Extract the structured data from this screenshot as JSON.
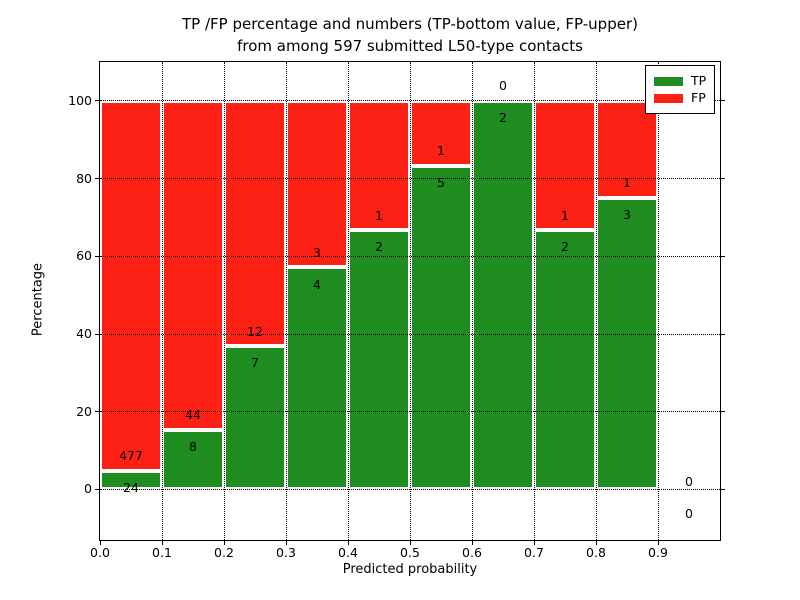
{
  "chart_data": {
    "type": "bar",
    "stacked": true,
    "title": "TP /FP percentage and numbers (TP-bottom value, FP-upper)\nfrom among 597 submitted L50-type contacts",
    "title_line1": "TP /FP percentage and numbers (TP-bottom value, FP-upper)",
    "title_line2": "from among 597 submitted L50-type contacts",
    "xlabel": "Predicted probability",
    "ylabel": "Percentage",
    "total_contacts": 597,
    "xlim": [
      0.0,
      1.0
    ],
    "ylim": [
      -13,
      110
    ],
    "grid": "dotted",
    "x_ticks": [
      0.0,
      0.1,
      0.2,
      0.3,
      0.4,
      0.5,
      0.6,
      0.7,
      0.8,
      0.9
    ],
    "x_tick_labels": [
      "0.0",
      "0.1",
      "0.2",
      "0.3",
      "0.4",
      "0.5",
      "0.6",
      "0.7",
      "0.8",
      "0.9"
    ],
    "y_ticks": [
      0,
      20,
      40,
      60,
      80,
      100
    ],
    "y_tick_labels": [
      "0",
      "20",
      "40",
      "60",
      "80",
      "100"
    ],
    "bins": [
      {
        "start": 0.0,
        "end": 0.1
      },
      {
        "start": 0.1,
        "end": 0.2
      },
      {
        "start": 0.2,
        "end": 0.3
      },
      {
        "start": 0.3,
        "end": 0.4
      },
      {
        "start": 0.4,
        "end": 0.5
      },
      {
        "start": 0.5,
        "end": 0.6
      },
      {
        "start": 0.6,
        "end": 0.7
      },
      {
        "start": 0.7,
        "end": 0.8
      },
      {
        "start": 0.8,
        "end": 0.9
      },
      {
        "start": 0.9,
        "end": 1.0
      }
    ],
    "series": [
      {
        "name": "TP",
        "color": "#1e8c1e",
        "values": [
          24,
          8,
          7,
          4,
          2,
          5,
          2,
          2,
          3,
          0
        ]
      },
      {
        "name": "FP",
        "color": "#fc2114",
        "values": [
          477,
          44,
          12,
          3,
          1,
          1,
          0,
          1,
          1,
          0
        ]
      }
    ],
    "tp_percent": [
      4.79,
      15.38,
      36.84,
      57.14,
      66.67,
      83.33,
      100.0,
      66.67,
      75.0,
      0
    ],
    "legend": {
      "position": "upper-right",
      "entries": [
        {
          "label": "TP",
          "color": "#1e8c1e"
        },
        {
          "label": "FP",
          "color": "#fc2114"
        }
      ]
    }
  }
}
